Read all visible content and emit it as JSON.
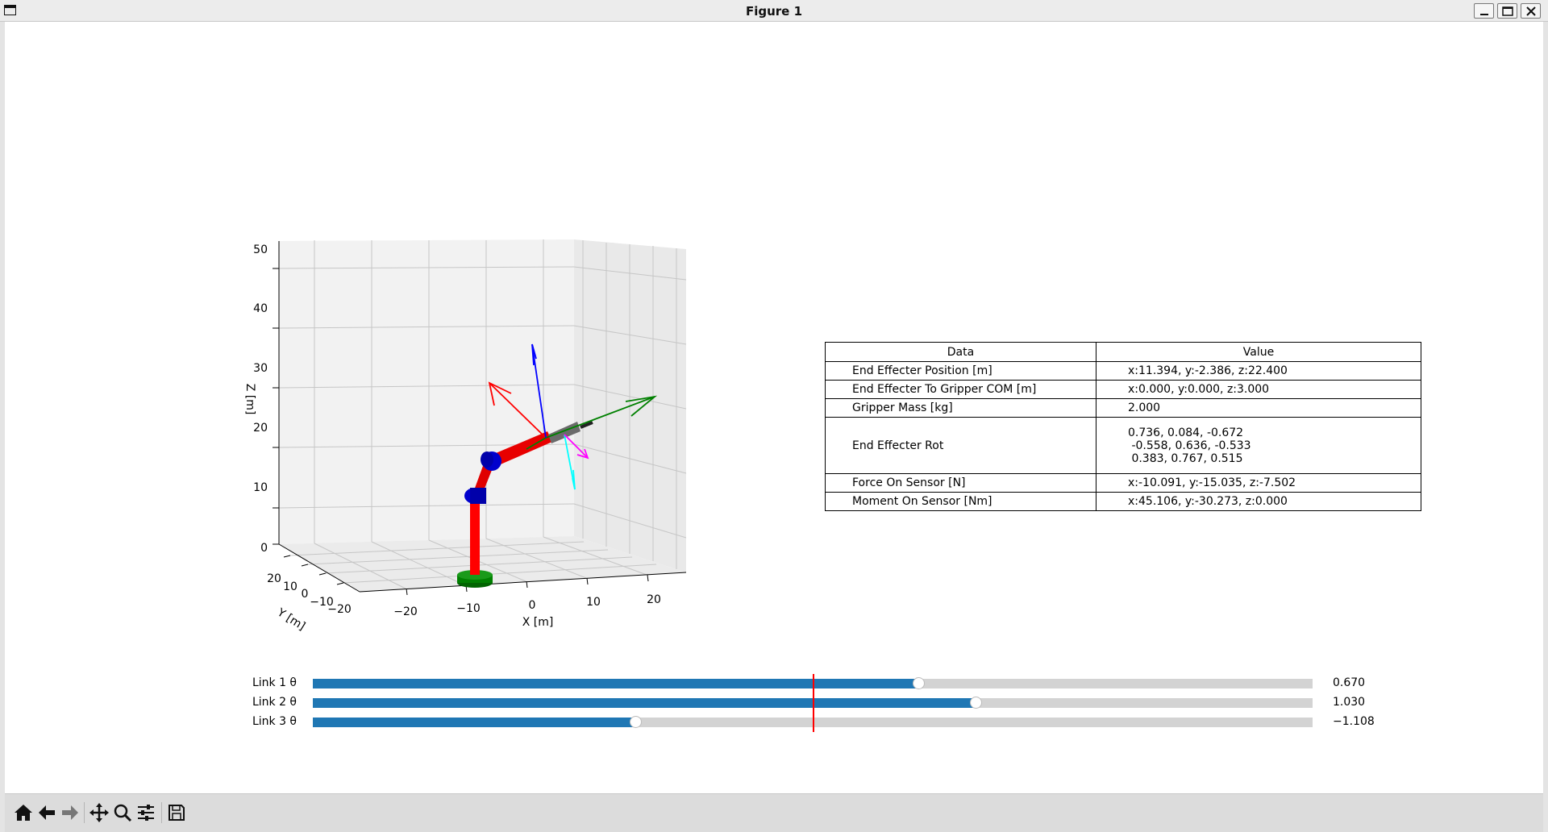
{
  "window": {
    "title": "Figure 1"
  },
  "axes3d": {
    "xlabel": "X [m]",
    "ylabel": "Y [m]",
    "zlabel": "Z [m]",
    "xticks": [
      "−20",
      "−10",
      "0",
      "10",
      "20"
    ],
    "yticks": [
      "20",
      "10",
      "0",
      "−10",
      "−20"
    ],
    "zticks": [
      "0",
      "10",
      "20",
      "30",
      "40",
      "50"
    ],
    "colors": {
      "links": "#ff0000",
      "joints": "#0000cd",
      "base": "#008000",
      "gripper": "#666666",
      "frame_x": "#ff0000",
      "frame_y": "#008000",
      "frame_z": "#0000ff",
      "force": "#00ffff",
      "moment": "#ff00ff"
    }
  },
  "table": {
    "headers": [
      "Data",
      "Value"
    ],
    "rows": [
      {
        "label": "End Effecter Position [m]",
        "value": "x:11.394, y:-2.386, z:22.400"
      },
      {
        "label": "End Effecter To Gripper COM [m]",
        "value": "x:0.000, y:0.000, z:3.000"
      },
      {
        "label": "Gripper Mass [kg]",
        "value": "2.000"
      },
      {
        "label": "End Effecter Rot",
        "lines": [
          "0.736, 0.084, -0.672",
          " -0.558, 0.636, -0.533",
          " 0.383, 0.767, 0.515"
        ]
      },
      {
        "label": "Force On Sensor [N]",
        "value": "x:-10.091, y:-15.035, z:-7.502"
      },
      {
        "label": "Moment On Sensor [Nm]",
        "value": "x:45.106, y:-30.273, z:0.000"
      }
    ]
  },
  "sliders": [
    {
      "label": "Link 1 θ",
      "value": "0.670",
      "fraction": 0.6066
    },
    {
      "label": "Link 2 θ",
      "value": "1.030",
      "fraction": 0.6639
    },
    {
      "label": "Link 3 θ",
      "value": "−1.108",
      "fraction": 0.3236
    }
  ],
  "slider_colors": {
    "fill": "#1f77b4",
    "track": "#d3d3d3",
    "init_marker": "#ff0000"
  },
  "toolbar": {
    "icons": [
      "home-icon",
      "back-arrow-icon",
      "forward-arrow-icon",
      "pan-icon",
      "zoom-icon",
      "configure-subplots-icon",
      "save-icon"
    ]
  }
}
